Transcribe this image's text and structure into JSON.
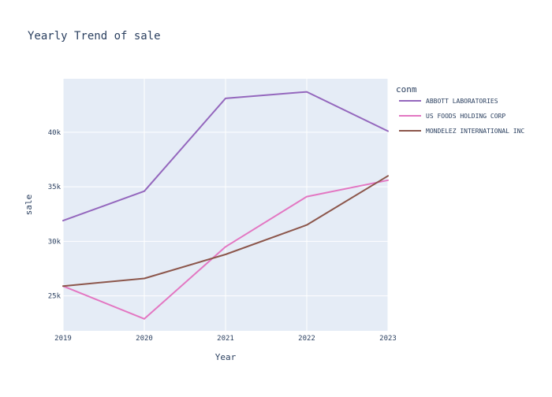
{
  "chart_data": {
    "type": "line",
    "title": "Yearly Trend of sale",
    "xlabel": "Year",
    "ylabel": "sale",
    "x": [
      2019,
      2020,
      2021,
      2022,
      2023
    ],
    "x_ticks": [
      "2019",
      "2020",
      "2021",
      "2022",
      "2023"
    ],
    "xlim": [
      2019,
      2023
    ],
    "y_ticks": [
      25000,
      30000,
      35000,
      40000
    ],
    "y_tick_labels": [
      "25k",
      "30k",
      "35k",
      "40k"
    ],
    "ylim": [
      21800,
      44900
    ],
    "grid": true,
    "legend_title": "conm",
    "legend_position": "right",
    "plot_background": "#e5ecf6",
    "series": [
      {
        "name": "ABBOTT LABORATORIES",
        "color": "#9467bd",
        "values": [
          31900,
          34600,
          43100,
          43700,
          40100
        ]
      },
      {
        "name": "US FOODS HOLDING CORP",
        "color": "#e377c2",
        "values": [
          25900,
          22900,
          29500,
          34100,
          35600
        ]
      },
      {
        "name": "MONDELEZ INTERNATIONAL INC",
        "color": "#8c564b",
        "values": [
          25900,
          26600,
          28800,
          31500,
          36000
        ]
      }
    ]
  }
}
